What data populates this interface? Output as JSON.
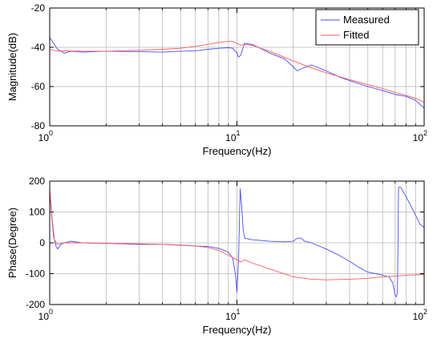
{
  "colors": {
    "measured": "#4b4bff",
    "fitted": "#ff5a5a",
    "grid": "#b8b8b8",
    "axes": "#000000"
  },
  "chart_data": [
    {
      "type": "line",
      "xscale": "log",
      "xlim": [
        1,
        100
      ],
      "ylim": [
        -80,
        -20
      ],
      "xticks": [
        1,
        10,
        100
      ],
      "xtick_base": "10",
      "xtick_exponents": [
        "0",
        "1",
        "2"
      ],
      "yticks": [
        -80,
        -60,
        -40,
        -20
      ],
      "ytick_labels": [
        "-80",
        "-60",
        "-40",
        "-20"
      ],
      "xlabel": "Frequency(Hz)",
      "ylabel": "Magnitude(dB)",
      "grid": true,
      "legend": "top-right",
      "series": [
        {
          "name": "Measured",
          "color_key": "measured",
          "x": [
            1,
            1.05,
            1.1,
            1.2,
            1.3,
            1.5,
            2,
            3,
            4,
            5,
            6,
            7,
            8,
            9,
            9.5,
            10,
            10.2,
            10.5,
            10.8,
            11,
            12,
            13,
            15,
            18,
            20,
            21,
            22,
            25,
            30,
            35,
            40,
            50,
            60,
            70,
            80,
            90,
            100
          ],
          "y": [
            -35,
            -38,
            -41,
            -43,
            -42,
            -42.5,
            -42,
            -42.2,
            -42.5,
            -42,
            -41.8,
            -41,
            -40.5,
            -40.2,
            -40.5,
            -43,
            -45,
            -44,
            -40,
            -38,
            -38.5,
            -40,
            -43,
            -46,
            -50,
            -52,
            -51,
            -49,
            -52,
            -55,
            -57,
            -60,
            -62,
            -64,
            -65,
            -67,
            -71
          ]
        },
        {
          "name": "Fitted",
          "color_key": "fitted",
          "x": [
            1,
            1.1,
            1.2,
            1.5,
            2,
            3,
            4,
            5,
            6,
            7,
            8,
            9,
            9.5,
            10,
            10.5,
            11,
            12,
            15,
            20,
            25,
            30,
            40,
            50,
            60,
            70,
            80,
            90,
            100
          ],
          "y": [
            -41,
            -42,
            -41.8,
            -42,
            -42,
            -41.5,
            -41,
            -40.5,
            -39.5,
            -38.5,
            -37.5,
            -37,
            -37,
            -38,
            -39,
            -38.5,
            -39,
            -42,
            -47,
            -50.5,
            -53,
            -56.5,
            -59,
            -61,
            -63,
            -64.5,
            -66,
            -68
          ]
        }
      ]
    },
    {
      "type": "line",
      "xscale": "log",
      "xlim": [
        1,
        100
      ],
      "ylim": [
        -200,
        200
      ],
      "xticks": [
        1,
        10,
        100
      ],
      "xtick_base": "10",
      "xtick_exponents": [
        "0",
        "1",
        "2"
      ],
      "yticks": [
        -200,
        -100,
        0,
        100,
        200
      ],
      "ytick_labels": [
        "-200",
        "-100",
        "0",
        "100",
        "200"
      ],
      "xlabel": "Frequency(Hz)",
      "ylabel": "Phase(Degree)",
      "grid": true,
      "series": [
        {
          "name": "Measured",
          "color_key": "measured",
          "x": [
            1,
            1.02,
            1.05,
            1.08,
            1.1,
            1.15,
            1.2,
            1.3,
            1.5,
            2,
            3,
            4,
            5,
            6,
            7,
            8,
            9,
            9.5,
            9.8,
            10,
            10.2,
            10.4,
            10.6,
            10.8,
            11,
            12,
            15,
            18,
            20,
            21,
            22,
            23,
            25,
            30,
            35,
            40,
            45,
            50,
            55,
            60,
            65,
            68,
            70,
            71,
            72,
            73,
            75,
            80,
            90,
            95,
            100
          ],
          "y": [
            170,
            100,
            20,
            -10,
            -20,
            -5,
            0,
            5,
            0,
            -2,
            -5,
            -5,
            -8,
            -10,
            -12,
            -18,
            -30,
            -50,
            -100,
            -160,
            -60,
            175,
            120,
            40,
            15,
            10,
            5,
            3,
            5,
            15,
            15,
            5,
            0,
            -20,
            -40,
            -60,
            -80,
            -95,
            -100,
            -105,
            -110,
            -130,
            -170,
            -175,
            -160,
            180,
            180,
            150,
            90,
            60,
            50
          ]
        },
        {
          "name": "Fitted",
          "color_key": "fitted",
          "x": [
            1,
            1.03,
            1.06,
            1.1,
            1.2,
            1.5,
            2,
            3,
            4,
            5,
            6,
            7,
            8,
            9,
            10,
            10.5,
            11,
            12,
            15,
            20,
            25,
            30,
            40,
            50,
            60,
            70,
            80,
            90,
            100
          ],
          "y": [
            175,
            80,
            10,
            -5,
            0,
            0,
            -2,
            -3,
            -5,
            -7,
            -10,
            -15,
            -25,
            -40,
            -55,
            -62,
            -55,
            -65,
            -85,
            -110,
            -118,
            -120,
            -118,
            -115,
            -110,
            -108,
            -105,
            -104,
            -102
          ]
        }
      ]
    }
  ]
}
